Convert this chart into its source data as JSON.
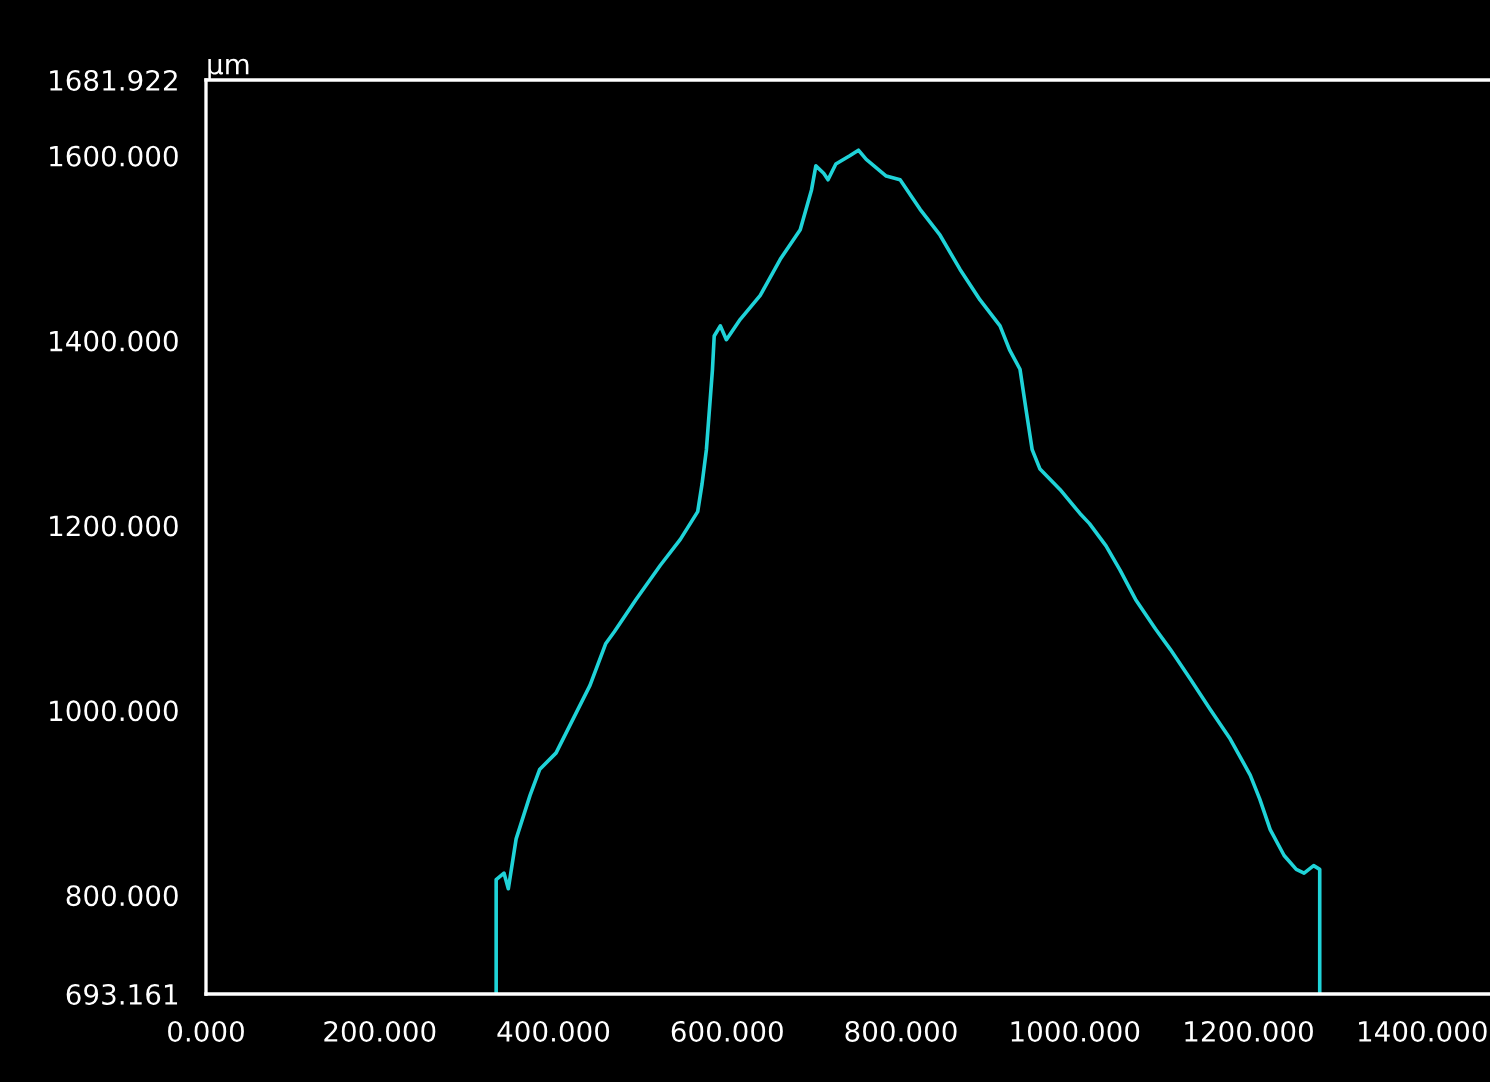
{
  "chart_data": {
    "type": "line",
    "ylabel": "µm",
    "x": [
      334,
      334,
      343,
      348,
      357,
      373,
      384,
      403,
      419,
      442,
      460,
      470,
      495,
      523,
      546,
      566,
      571,
      576,
      583,
      585,
      592,
      599,
      615,
      638,
      661,
      684,
      697,
      702,
      711,
      716,
      725,
      741,
      751,
      760,
      783,
      799,
      822,
      845,
      868,
      891,
      914,
      925,
      937,
      944,
      951,
      960,
      983,
      1006,
      1017,
      1036,
      1052,
      1070,
      1093,
      1110,
      1133,
      1156,
      1179,
      1202,
      1213,
      1225,
      1241,
      1255,
      1264,
      1275,
      1282,
      1282
    ],
    "series": [
      {
        "color": "#1fd3d8",
        "values": [
          693.161,
          817,
          824,
          807,
          861,
          908,
          936,
          954,
          984,
          1027,
          1072,
          1085,
          1120,
          1157,
          1185,
          1215,
          1245,
          1282,
          1369,
          1405,
          1416,
          1401,
          1423,
          1449,
          1488,
          1520,
          1563,
          1589,
          1581,
          1574,
          1591,
          1600,
          1606,
          1596,
          1578,
          1574,
          1542,
          1514,
          1477,
          1444,
          1416,
          1390,
          1369,
          1325,
          1282,
          1261,
          1239,
          1213,
          1202,
          1178,
          1152,
          1120,
          1088,
          1066,
          1034,
          1001,
          969,
          930,
          904,
          871,
          843,
          828,
          824,
          832,
          828,
          693.161
        ]
      }
    ],
    "xlim": [
      0,
      1478
    ],
    "ylim": [
      693.161,
      1681.922
    ],
    "xticks": [
      {
        "value": 0,
        "label": "0.000"
      },
      {
        "value": 200,
        "label": "200.000"
      },
      {
        "value": 400,
        "label": "400.000"
      },
      {
        "value": 600,
        "label": "600.000"
      },
      {
        "value": 800,
        "label": "800.000"
      },
      {
        "value": 1000,
        "label": "1000.000"
      },
      {
        "value": 1200,
        "label": "1200.000"
      },
      {
        "value": 1400,
        "label": "1400.000"
      }
    ],
    "yticks": [
      {
        "value": 693.161,
        "label": "693.161"
      },
      {
        "value": 800,
        "label": "800.000"
      },
      {
        "value": 1000,
        "label": "1000.000"
      },
      {
        "value": 1200,
        "label": "1200.000"
      },
      {
        "value": 1400,
        "label": "1400.000"
      },
      {
        "value": 1600,
        "label": "1600.000"
      },
      {
        "value": 1681.922,
        "label": "1681.922"
      }
    ],
    "grid": false,
    "legend": false,
    "marker": "none",
    "line_style": "solid"
  }
}
